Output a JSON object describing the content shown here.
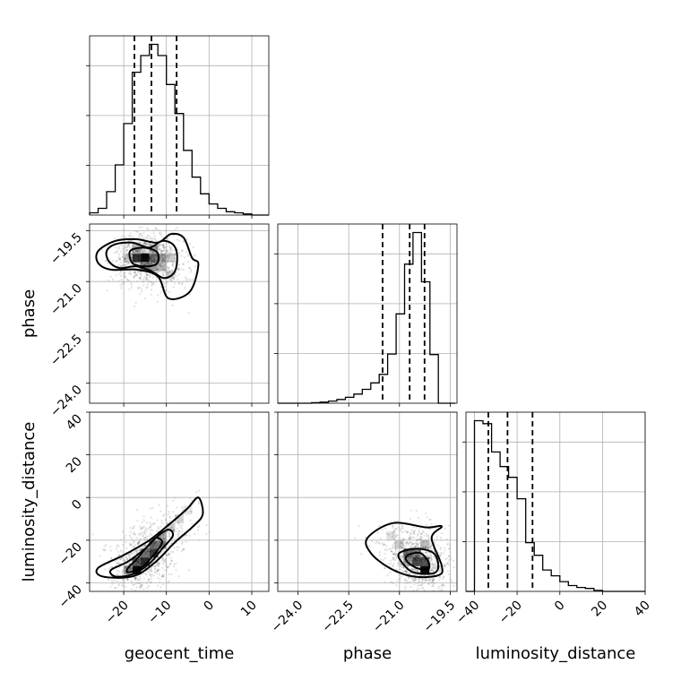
{
  "chart_data": {
    "type": "corner",
    "parameters": [
      "geocent_time",
      "phase",
      "luminosity_distance"
    ],
    "axes": {
      "geocent_time": {
        "label": "geocent_time",
        "range": [
          -28,
          14
        ],
        "ticks": [
          -20,
          -10,
          0,
          10
        ],
        "tick_labels": [
          "−20",
          "−10",
          "0",
          "10"
        ]
      },
      "phase": {
        "label": "phase",
        "range": [
          -24.6,
          -19.3
        ],
        "ticks": [
          -24.0,
          -22.5,
          -21.0,
          -19.5
        ],
        "tick_labels": [
          "−24.0",
          "−22.5",
          "−21.0",
          "−19.5"
        ]
      },
      "luminosity_distance": {
        "label": "luminosity_distance",
        "range": [
          -44,
          40
        ],
        "ticks": [
          -40,
          -20,
          0,
          20,
          40
        ],
        "tick_labels": [
          "−40",
          "−20",
          "0",
          "20",
          "40"
        ]
      }
    },
    "grid": true,
    "histograms": [
      {
        "parameter": "geocent_time",
        "bin_edges": [
          -28,
          -26,
          -24,
          -22,
          -20,
          -18,
          -16,
          -14,
          -12,
          -10,
          -8,
          -6,
          -4,
          -2,
          0,
          2,
          4,
          6,
          8,
          10,
          12,
          14
        ],
        "counts": [
          2,
          6,
          21,
          45,
          82,
          128,
          143,
          153,
          143,
          117,
          91,
          58,
          34,
          19,
          10,
          6,
          3,
          2,
          1,
          0,
          0
        ],
        "quantiles": [
          -17.5,
          -13.5,
          -7.6
        ]
      },
      {
        "parameter": "phase",
        "bin_edges": [
          -24.6,
          -24.35,
          -24.1,
          -23.85,
          -23.6,
          -23.35,
          -23.1,
          -22.85,
          -22.6,
          -22.35,
          -22.1,
          -21.85,
          -21.6,
          -21.35,
          -21.1,
          -20.85,
          -20.6,
          -20.35,
          -20.1,
          -19.85,
          -19.6,
          -19.35
        ],
        "counts": [
          0,
          0,
          0,
          0,
          1,
          2,
          4,
          7,
          11,
          17,
          26,
          38,
          54,
          92,
          167,
          260,
          319,
          227,
          91,
          0,
          0
        ],
        "quantiles": [
          -21.5,
          -20.7,
          -20.26
        ]
      },
      {
        "parameter": "luminosity_distance",
        "bin_edges": [
          -44,
          -40,
          -36,
          -32,
          -28,
          -24,
          -20,
          -16,
          -12,
          -8,
          -4,
          0,
          4,
          8,
          12,
          16,
          20,
          24,
          28,
          32,
          36,
          40
        ],
        "counts": [
          0,
          175,
          172,
          143,
          128,
          117,
          95,
          50,
          37,
          22,
          16,
          10,
          6,
          4,
          3,
          1,
          0,
          0,
          0,
          0,
          0
        ],
        "quantiles": [
          -33.5,
          -24.5,
          -12.8
        ]
      }
    ],
    "pairs": [
      {
        "x": "geocent_time",
        "y": "phase",
        "density_cells": [
          {
            "x": -15,
            "y": -20.3,
            "w": 0.95
          },
          {
            "x": -17,
            "y": -20.3,
            "w": 0.8
          },
          {
            "x": -13,
            "y": -20.3,
            "w": 0.55
          },
          {
            "x": -11,
            "y": -20.3,
            "w": 0.35
          },
          {
            "x": -15,
            "y": -20.55,
            "w": 0.45
          },
          {
            "x": -13,
            "y": -20.55,
            "w": 0.35
          },
          {
            "x": -17,
            "y": -20.05,
            "w": 0.3
          },
          {
            "x": -13,
            "y": -20.05,
            "w": 0.3
          },
          {
            "x": -11,
            "y": -20.55,
            "w": 0.25
          },
          {
            "x": -9,
            "y": -20.3,
            "w": 0.2
          },
          {
            "x": -9,
            "y": -20.8,
            "w": 0.15
          },
          {
            "x": -19,
            "y": -20.3,
            "w": 0.22
          }
        ],
        "contours": [
          [
            [
              -18.5,
              -20.1
            ],
            [
              -15.5,
              -20.0
            ],
            [
              -12.5,
              -20.1
            ],
            [
              -11.8,
              -20.3
            ],
            [
              -12.5,
              -20.5
            ],
            [
              -15.5,
              -20.55
            ],
            [
              -18.0,
              -20.45
            ]
          ],
          [
            [
              -24,
              -20.1
            ],
            [
              -22,
              -19.9
            ],
            [
              -18,
              -19.85
            ],
            [
              -14,
              -20.0
            ],
            [
              -11,
              -19.8
            ],
            [
              -8.5,
              -19.9
            ],
            [
              -7.5,
              -20.2
            ],
            [
              -8.0,
              -20.7
            ],
            [
              -10.5,
              -20.9
            ],
            [
              -13.5,
              -20.7
            ],
            [
              -17,
              -20.55
            ],
            [
              -21,
              -20.6
            ],
            [
              -23.5,
              -20.4
            ]
          ],
          [
            [
              -26,
              -20.1
            ],
            [
              -22,
              -19.8
            ],
            [
              -17,
              -19.75
            ],
            [
              -12,
              -19.85
            ],
            [
              -9,
              -19.6
            ],
            [
              -6,
              -19.7
            ],
            [
              -4,
              -20.3
            ],
            [
              -2.5,
              -20.5
            ],
            [
              -4.5,
              -21.3
            ],
            [
              -9.5,
              -21.5
            ],
            [
              -12,
              -20.85
            ],
            [
              -17,
              -20.65
            ],
            [
              -23,
              -20.65
            ],
            [
              -26,
              -20.45
            ]
          ]
        ]
      },
      {
        "x": "geocent_time",
        "y": "luminosity_distance",
        "density_cells": [
          {
            "x": -17,
            "y": -34,
            "w": 0.95
          },
          {
            "x": -17,
            "y": -30,
            "w": 0.6
          },
          {
            "x": -15,
            "y": -30,
            "w": 0.8
          },
          {
            "x": -13,
            "y": -26,
            "w": 0.75
          },
          {
            "x": -13,
            "y": -22,
            "w": 0.55
          },
          {
            "x": -11,
            "y": -22,
            "w": 0.45
          },
          {
            "x": -11,
            "y": -18,
            "w": 0.35
          },
          {
            "x": -15,
            "y": -26,
            "w": 0.5
          },
          {
            "x": -9,
            "y": -14,
            "w": 0.2
          },
          {
            "x": -7,
            "y": -10,
            "w": 0.15
          },
          {
            "x": -19,
            "y": -34,
            "w": 0.4
          },
          {
            "x": -5,
            "y": -6,
            "w": 0.1
          }
        ],
        "contours": [
          [
            [
              -19,
              -35
            ],
            [
              -16,
              -33
            ],
            [
              -13,
              -27
            ],
            [
              -11,
              -21
            ],
            [
              -12.5,
              -19
            ],
            [
              -14.5,
              -23
            ],
            [
              -17,
              -29
            ],
            [
              -19,
              -33
            ]
          ],
          [
            [
              -23,
              -34
            ],
            [
              -19,
              -30
            ],
            [
              -15,
              -24
            ],
            [
              -12,
              -18
            ],
            [
              -9.5,
              -15
            ],
            [
              -8.5,
              -18
            ],
            [
              -11,
              -24
            ],
            [
              -14,
              -31
            ],
            [
              -18,
              -36
            ],
            [
              -22,
              -37
            ]
          ],
          [
            [
              -26,
              -33
            ],
            [
              -20,
              -27
            ],
            [
              -14,
              -20
            ],
            [
              -9,
              -12
            ],
            [
              -5,
              -5
            ],
            [
              -2.5,
              0
            ],
            [
              -1.5,
              -8
            ],
            [
              -4,
              -14
            ],
            [
              -8,
              -21
            ],
            [
              -13,
              -31
            ],
            [
              -18,
              -37
            ],
            [
              -25,
              -37
            ]
          ]
        ]
      },
      {
        "x": "phase",
        "y": "luminosity_distance",
        "density_cells": [
          {
            "x": -20.25,
            "y": -34,
            "w": 0.95
          },
          {
            "x": -20.5,
            "y": -30,
            "w": 0.7
          },
          {
            "x": -20.75,
            "y": -26,
            "w": 0.55
          },
          {
            "x": -20.5,
            "y": -26,
            "w": 0.45
          },
          {
            "x": -20.25,
            "y": -30,
            "w": 0.6
          },
          {
            "x": -20.75,
            "y": -30,
            "w": 0.35
          },
          {
            "x": -21.0,
            "y": -22,
            "w": 0.2
          },
          {
            "x": -20.25,
            "y": -22,
            "w": 0.25
          },
          {
            "x": -21.25,
            "y": -18,
            "w": 0.12
          }
        ],
        "contours": [
          [
            [
              -20.75,
              -27
            ],
            [
              -20.4,
              -26
            ],
            [
              -20.15,
              -30
            ],
            [
              -20.15,
              -33.5
            ],
            [
              -20.5,
              -33
            ],
            [
              -20.8,
              -29.5
            ]
          ],
          [
            [
              -21.0,
              -26
            ],
            [
              -20.5,
              -24
            ],
            [
              -20.0,
              -26
            ],
            [
              -19.85,
              -32
            ],
            [
              -20.0,
              -35.5
            ],
            [
              -20.6,
              -35
            ],
            [
              -20.95,
              -30
            ]
          ],
          [
            [
              -21.95,
              -19
            ],
            [
              -21.2,
              -12
            ],
            [
              -20.2,
              -14
            ],
            [
              -19.75,
              -13.5
            ],
            [
              -20.05,
              -19
            ],
            [
              -19.75,
              -32
            ],
            [
              -19.85,
              -36.5
            ],
            [
              -20.6,
              -37
            ],
            [
              -21.3,
              -33
            ],
            [
              -21.85,
              -26
            ]
          ]
        ]
      }
    ]
  }
}
